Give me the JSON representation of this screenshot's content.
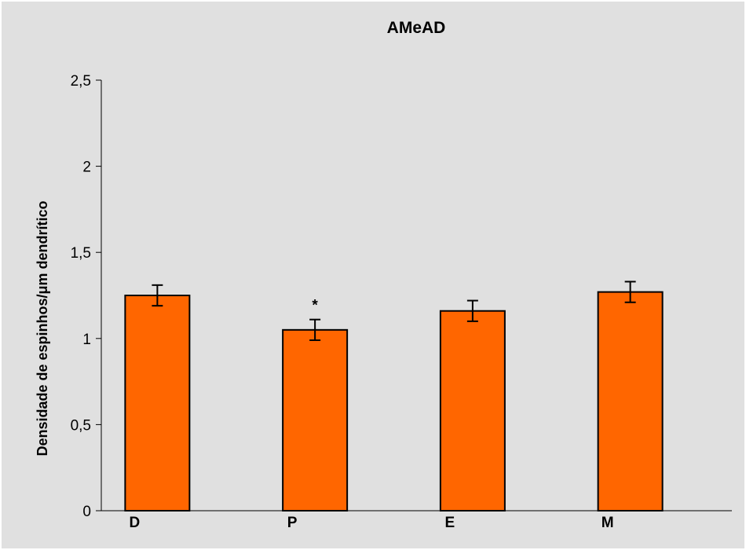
{
  "chart_data": {
    "type": "bar",
    "title": "AMeAD",
    "xlabel": "",
    "ylabel": "Densidade de espinhos/μm dendrítico",
    "categories": [
      "D",
      "P",
      "E",
      "M"
    ],
    "values": [
      1.25,
      1.05,
      1.16,
      1.27
    ],
    "errors": [
      0.06,
      0.06,
      0.06,
      0.06
    ],
    "annotations": [
      "",
      "*",
      "",
      ""
    ],
    "ylim": [
      0,
      2.5
    ],
    "yticks": [
      0,
      0.5,
      1,
      1.5,
      2,
      2.5
    ],
    "ytick_labels": [
      "0",
      "0,5",
      "1",
      "1,5",
      "2",
      "2,5"
    ],
    "grid": false,
    "legend": "none",
    "colors": {
      "bar": "#ff6600",
      "bar_edge": "#000000",
      "background": "#e0e0e0"
    }
  }
}
